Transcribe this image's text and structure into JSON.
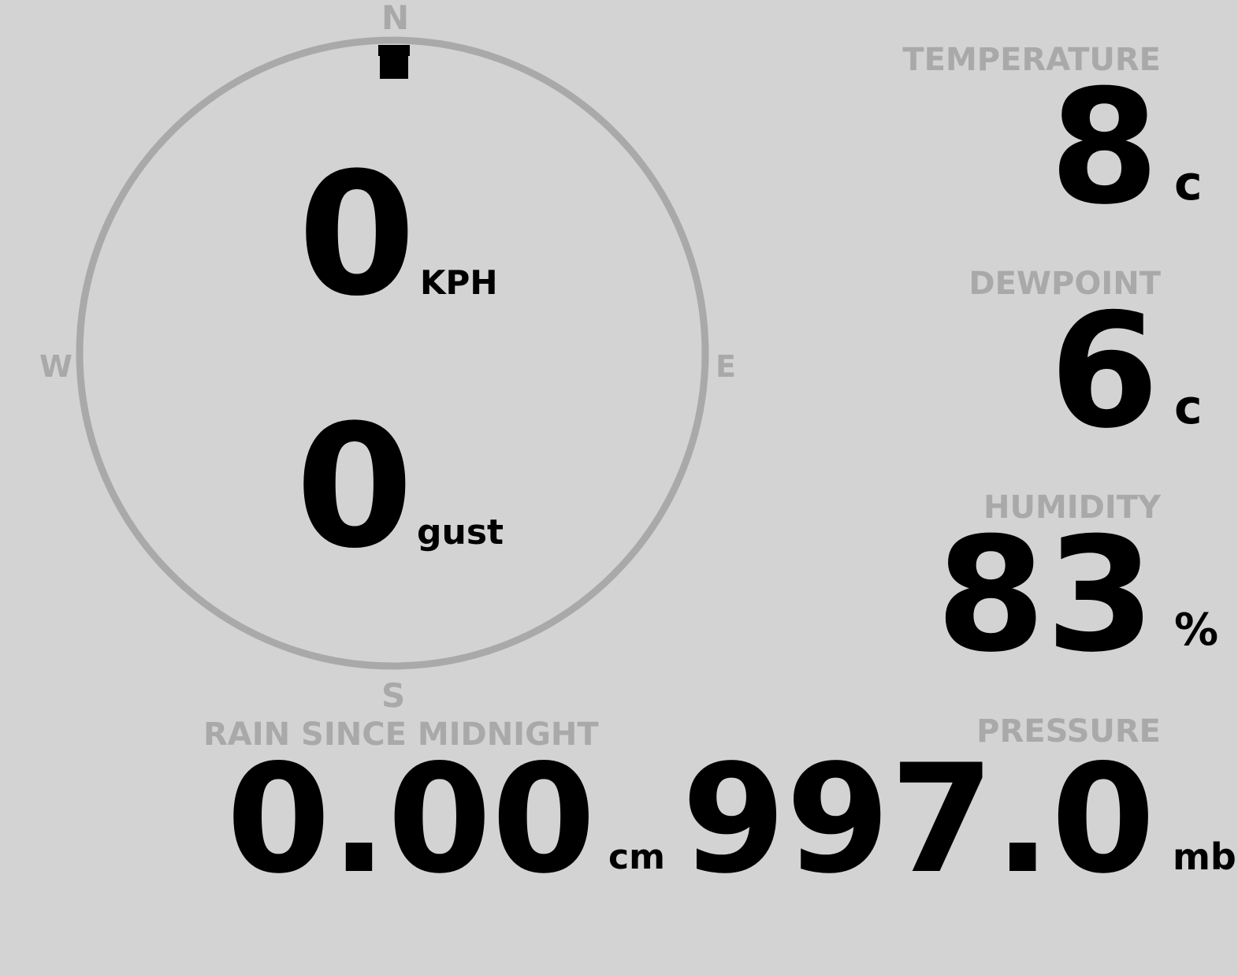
{
  "colors": {
    "background": "#d3d3d3",
    "label": "#a9a9a9",
    "value": "#000000",
    "ring": "#a9a9a9",
    "marker": "#000000"
  },
  "compass": {
    "north": "N",
    "east": "E",
    "south": "S",
    "west": "W",
    "wind_direction_deg": 0
  },
  "wind": {
    "speed": "0",
    "speed_unit": "KPH",
    "gust": "0",
    "gust_unit": "gust"
  },
  "temperature": {
    "label": "TEMPERATURE",
    "value": "8",
    "unit": "c"
  },
  "dewpoint": {
    "label": "DEWPOINT",
    "value": "6",
    "unit": "c"
  },
  "humidity": {
    "label": "HUMIDITY",
    "value": "83",
    "unit": "%"
  },
  "pressure": {
    "label": "PRESSURE",
    "value": "997.0",
    "unit": "mb"
  },
  "rain": {
    "label": "RAIN SINCE MIDNIGHT",
    "value": "0.00",
    "unit": "cm"
  }
}
